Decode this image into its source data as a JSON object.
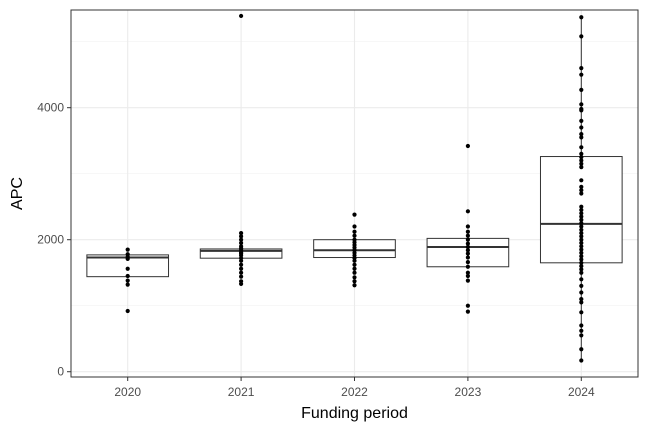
{
  "chart_data": {
    "type": "box",
    "title": "",
    "xlabel": "Funding period",
    "ylabel": "APC",
    "ylim": [
      -80,
      5480
    ],
    "y_ticks": [
      0,
      2000,
      4000
    ],
    "y_tick_labels": [
      "0",
      "2000",
      "4000"
    ],
    "y_minor_gridlines": [
      1000,
      3000,
      5000
    ],
    "grid": true,
    "legend": "none",
    "categories": [
      "2020",
      "2021",
      "2022",
      "2023",
      "2024"
    ],
    "boxes": [
      {
        "category": "2020",
        "q1": 1440,
        "median": 1730,
        "q3": 1770,
        "whisker_low": 1440,
        "whisker_high": 1780
      },
      {
        "category": "2021",
        "q1": 1720,
        "median": 1830,
        "q3": 1860,
        "whisker_low": 1720,
        "whisker_high": 1860
      },
      {
        "category": "2022",
        "q1": 1730,
        "median": 1840,
        "q3": 2000,
        "whisker_low": 1730,
        "whisker_high": 2000
      },
      {
        "category": "2023",
        "q1": 1590,
        "median": 1890,
        "q3": 2020,
        "whisker_low": 1590,
        "whisker_high": 2020
      },
      {
        "category": "2024",
        "q1": 1650,
        "median": 2240,
        "q3": 3260,
        "whisker_low": 170,
        "whisker_high": 5370
      }
    ],
    "points": [
      {
        "category": "2020",
        "values": [
          1850,
          1780,
          1740,
          1710,
          1560,
          1450,
          1380,
          1320,
          920
        ]
      },
      {
        "category": "2021",
        "values": [
          5390,
          2100,
          2050,
          2000,
          1950,
          1900,
          1870,
          1840,
          1810,
          1790,
          1760,
          1720,
          1680,
          1620,
          1560,
          1500,
          1440,
          1370,
          1330
        ]
      },
      {
        "category": "2022",
        "values": [
          2380,
          2200,
          2120,
          2060,
          2000,
          1960,
          1920,
          1880,
          1840,
          1800,
          1760,
          1720,
          1680,
          1620,
          1560,
          1500,
          1430,
          1370,
          1310
        ]
      },
      {
        "category": "2023",
        "values": [
          3420,
          2430,
          2200,
          2120,
          2060,
          2000,
          1940,
          1890,
          1840,
          1790,
          1730,
          1660,
          1590,
          1500,
          1450,
          1380,
          1000,
          910
        ]
      },
      {
        "category": "2024",
        "values": [
          5370,
          5080,
          4600,
          4500,
          4270,
          4050,
          3980,
          3960,
          3800,
          3700,
          3600,
          3550,
          3400,
          3300,
          3250,
          3200,
          3150,
          3100,
          2900,
          2800,
          2750,
          2700,
          2500,
          2450,
          2400,
          2350,
          2300,
          2250,
          2200,
          2150,
          2100,
          2050,
          2000,
          1950,
          1900,
          1850,
          1800,
          1750,
          1700,
          1650,
          1600,
          1550,
          1500,
          1400,
          1300,
          1200,
          1100,
          1050,
          900,
          700,
          620,
          550,
          340,
          170
        ]
      }
    ]
  }
}
